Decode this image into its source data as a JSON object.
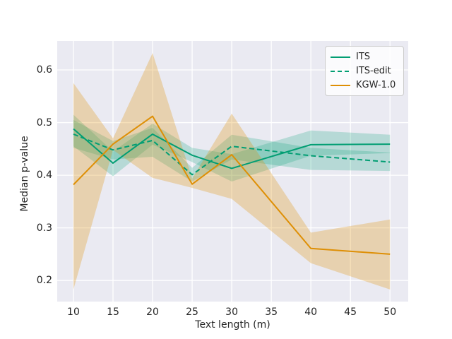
{
  "figure": {
    "background": "#ffffff"
  },
  "axes": {
    "background": "#eaeaf2",
    "grid_color": "#ffffff",
    "grid": true,
    "text_color": "#262626",
    "xlabel": "Text length (m)",
    "ylabel": "Median p-value",
    "xticks": [
      10,
      15,
      20,
      25,
      30,
      35,
      40,
      45,
      50
    ],
    "yticks": [
      0.2,
      0.3,
      0.4,
      0.5,
      0.6
    ],
    "xlim": [
      7.95,
      52.3
    ],
    "ylim": [
      0.16,
      0.655
    ]
  },
  "legend": {
    "position": "upper right",
    "entries": [
      "ITS",
      "ITS-edit",
      "KGW-1.0"
    ]
  },
  "chart_data": {
    "type": "line",
    "title": "",
    "xlabel": "Text length (m)",
    "ylabel": "Median p-value",
    "x": [
      10,
      15,
      20,
      25,
      30,
      40,
      50
    ],
    "xlim": [
      7.95,
      52.3
    ],
    "ylim": [
      0.16,
      0.655
    ],
    "grid": true,
    "legend_position": "upper right",
    "series": [
      {
        "name": "ITS",
        "color": "#029e73",
        "style": "solid",
        "values": [
          0.488,
          0.423,
          0.478,
          0.438,
          0.413,
          0.458,
          0.459
        ],
        "band_low": [
          0.455,
          0.398,
          0.458,
          0.425,
          0.388,
          0.437,
          0.442
        ],
        "band_high": [
          0.515,
          0.445,
          0.498,
          0.452,
          0.44,
          0.485,
          0.477
        ],
        "band_alpha": 0.22
      },
      {
        "name": "ITS-edit",
        "color": "#029e73",
        "style": "dashed",
        "values": [
          0.478,
          0.448,
          0.466,
          0.401,
          0.455,
          0.437,
          0.425
        ],
        "band_low": [
          0.452,
          0.43,
          0.435,
          0.388,
          0.43,
          0.41,
          0.408
        ],
        "band_high": [
          0.505,
          0.465,
          0.49,
          0.414,
          0.477,
          0.452,
          0.443
        ],
        "band_alpha": 0.22
      },
      {
        "name": "KGW-1.0",
        "color": "#de8f05",
        "style": "solid",
        "values": [
          0.382,
          0.459,
          0.512,
          0.383,
          0.439,
          0.261,
          0.25
        ],
        "band_low": [
          0.183,
          0.448,
          0.395,
          0.376,
          0.355,
          0.233,
          0.183
        ],
        "band_high": [
          0.575,
          0.47,
          0.632,
          0.394,
          0.517,
          0.291,
          0.316
        ],
        "band_alpha": 0.28
      }
    ]
  }
}
